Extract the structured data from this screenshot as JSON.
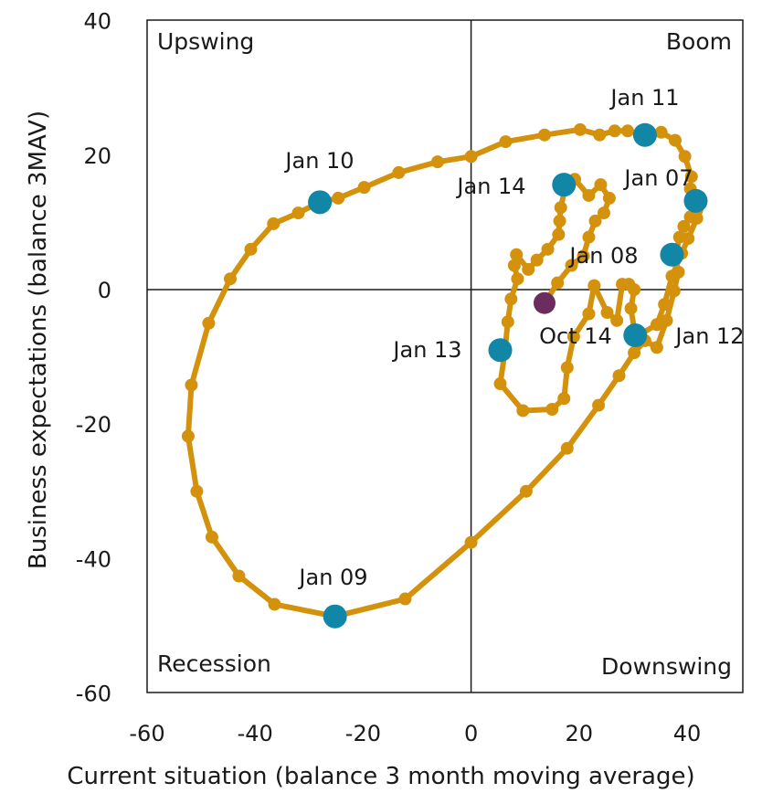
{
  "chart_data": {
    "type": "line",
    "xlabel": "Current situation (balance 3 month moving average)",
    "ylabel": "Business expectations (balance 3MAV)",
    "xlim": [
      -60,
      45
    ],
    "ylim": [
      -60,
      40
    ],
    "xticks": [
      "-60",
      "-40",
      "-20",
      "0",
      "20",
      "40"
    ],
    "yticks": [
      "40",
      "20",
      "0",
      "-20",
      "-40",
      "-60"
    ],
    "quadrants": {
      "top_left": "Upswing",
      "top_right": "Boom",
      "bottom_left": "Recession",
      "bottom_right": "Downswing"
    },
    "colors": {
      "line": "#d4920c",
      "highlight": "#1286a6",
      "latest": "#6b2c5e"
    },
    "series": [
      {
        "points": [
          [
            40.8,
            16.8
          ],
          [
            39.6,
            19.8
          ],
          [
            37.8,
            22.2
          ],
          [
            35.2,
            23.4
          ],
          [
            32.2,
            23.0
          ],
          [
            29.0,
            23.6
          ],
          [
            26.6,
            23.6
          ],
          [
            23.8,
            23.0
          ],
          [
            20.2,
            23.8
          ],
          [
            13.6,
            23.0
          ],
          [
            6.4,
            22.0
          ],
          [
            0.0,
            19.8
          ],
          [
            -6.2,
            19.0
          ],
          [
            -13.4,
            17.4
          ],
          [
            -19.8,
            15.2
          ],
          [
            -24.6,
            13.6
          ],
          [
            -28.0,
            13.0
          ],
          [
            -32.0,
            11.4
          ],
          [
            -36.6,
            9.8
          ],
          [
            -40.8,
            6.0
          ],
          [
            -44.6,
            1.6
          ],
          [
            -48.6,
            -5.0
          ],
          [
            -51.8,
            -14.2
          ],
          [
            -52.4,
            -21.8
          ],
          [
            -50.8,
            -30.0
          ],
          [
            -48.0,
            -36.8
          ],
          [
            -43.0,
            -42.6
          ],
          [
            -36.4,
            -46.8
          ],
          [
            -25.2,
            -48.6
          ],
          [
            -12.2,
            -46.0
          ],
          [
            0.0,
            -37.6
          ],
          [
            10.2,
            -30.0
          ],
          [
            17.8,
            -23.6
          ],
          [
            23.6,
            -17.2
          ],
          [
            27.4,
            -12.8
          ],
          [
            30.2,
            -9.4
          ],
          [
            32.2,
            -7.6
          ],
          [
            34.4,
            -8.6
          ],
          [
            36.2,
            -4.6
          ],
          [
            37.6,
            -0.2
          ],
          [
            38.4,
            2.6
          ],
          [
            37.8,
            5.0
          ],
          [
            38.6,
            7.8
          ],
          [
            39.4,
            9.4
          ],
          [
            40.6,
            10.8
          ],
          [
            41.8,
            11.8
          ],
          [
            41.2,
            13.0
          ],
          [
            40.6,
            15.0
          ],
          [
            41.8,
            10.6
          ],
          [
            40.2,
            7.6
          ],
          [
            39.0,
            5.4
          ],
          [
            37.2,
            2.0
          ],
          [
            35.8,
            -2.2
          ],
          [
            34.4,
            -5.2
          ],
          [
            31.4,
            -6.6
          ],
          [
            30.4,
            -6.8
          ],
          [
            29.6,
            -2.8
          ],
          [
            30.2,
            0.0
          ],
          [
            29.2,
            0.8
          ],
          [
            28.0,
            0.8
          ],
          [
            27.0,
            -4.6
          ],
          [
            25.2,
            -3.4
          ],
          [
            22.8,
            0.6
          ],
          [
            21.8,
            -3.6
          ],
          [
            19.0,
            -7.0
          ],
          [
            17.8,
            -11.6
          ],
          [
            17.2,
            -16.2
          ],
          [
            15.0,
            -17.8
          ],
          [
            9.6,
            -18.0
          ],
          [
            5.4,
            -14.0
          ],
          [
            6.2,
            -9.6
          ],
          [
            6.8,
            -4.8
          ],
          [
            7.4,
            -1.4
          ],
          [
            8.6,
            1.6
          ],
          [
            8.0,
            3.6
          ],
          [
            8.4,
            5.2
          ],
          [
            10.6,
            3.0
          ],
          [
            12.2,
            4.4
          ],
          [
            14.2,
            6.0
          ],
          [
            16.2,
            8.2
          ],
          [
            16.4,
            10.2
          ],
          [
            16.6,
            12.2
          ],
          [
            17.4,
            15.0
          ],
          [
            19.2,
            16.4
          ],
          [
            21.8,
            14.0
          ],
          [
            24.0,
            15.6
          ],
          [
            25.6,
            13.6
          ],
          [
            24.6,
            11.4
          ],
          [
            23.0,
            10.2
          ],
          [
            21.8,
            7.8
          ],
          [
            20.8,
            5.0
          ],
          [
            18.6,
            3.6
          ],
          [
            16.0,
            1.0
          ],
          [
            13.6,
            -2.0
          ]
        ]
      }
    ],
    "highlights": [
      {
        "label": "Jan 07",
        "x": 41.6,
        "y": 13.2
      },
      {
        "label": "Jan 08",
        "x": 37.2,
        "y": 5.2
      },
      {
        "label": "Jan 09",
        "x": -25.2,
        "y": -48.6
      },
      {
        "label": "Jan 10",
        "x": -28.0,
        "y": 13.0
      },
      {
        "label": "Jan 11",
        "x": 32.2,
        "y": 23.0
      },
      {
        "label": "Jan 12",
        "x": 30.4,
        "y": -6.8
      },
      {
        "label": "Jan 13",
        "x": 5.4,
        "y": -9.0
      },
      {
        "label": "Jan 14",
        "x": 17.2,
        "y": 15.6
      }
    ],
    "latest": {
      "label": "Oct 14",
      "x": 13.6,
      "y": -2.0
    }
  }
}
